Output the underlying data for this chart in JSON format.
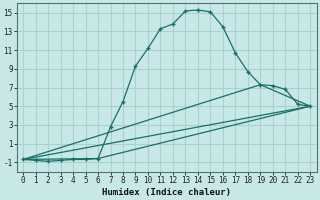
{
  "xlabel": "Humidex (Indice chaleur)",
  "background_color": "#c8e8e8",
  "grid_color": "#aad0d0",
  "line_color": "#1a6e6a",
  "series1_x": [
    0,
    1,
    2,
    3,
    4,
    5,
    6,
    7,
    8,
    9,
    10,
    11,
    12,
    13,
    14,
    15,
    16,
    17,
    18,
    19,
    20,
    21,
    22,
    23
  ],
  "series1_y": [
    -0.7,
    -0.8,
    -0.9,
    -0.8,
    -0.7,
    -0.7,
    -0.6,
    2.8,
    5.5,
    9.3,
    11.2,
    13.3,
    13.8,
    15.2,
    15.3,
    15.1,
    13.5,
    10.7,
    8.7,
    7.3,
    7.2,
    6.8,
    5.2,
    5.0
  ],
  "series2_x": [
    0,
    19,
    23
  ],
  "series2_y": [
    -0.7,
    7.3,
    5.0
  ],
  "series3_x": [
    0,
    23
  ],
  "series3_y": [
    -0.7,
    5.0
  ],
  "series4_x": [
    0,
    6,
    23
  ],
  "series4_y": [
    -0.7,
    -0.6,
    5.0
  ],
  "ylim": [
    -2,
    16
  ],
  "xlim": [
    -0.5,
    23.5
  ],
  "yticks": [
    -1,
    1,
    3,
    5,
    7,
    9,
    11,
    13,
    15
  ],
  "xticks": [
    0,
    1,
    2,
    3,
    4,
    5,
    6,
    7,
    8,
    9,
    10,
    11,
    12,
    13,
    14,
    15,
    16,
    17,
    18,
    19,
    20,
    21,
    22,
    23
  ]
}
